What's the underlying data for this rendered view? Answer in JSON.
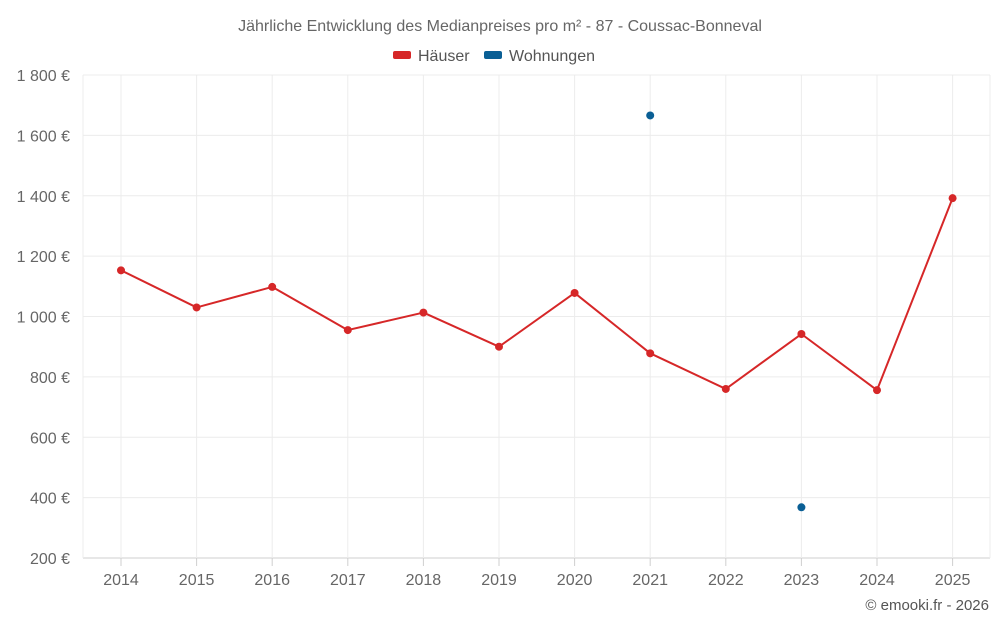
{
  "chart_data": {
    "type": "line",
    "title": "Jährliche Entwicklung des Medianpreises pro m² - 87 - Coussac-Bonneval",
    "categories": [
      "2014",
      "2015",
      "2016",
      "2017",
      "2018",
      "2019",
      "2020",
      "2021",
      "2022",
      "2023",
      "2024",
      "2025"
    ],
    "ylim": [
      200,
      1800
    ],
    "yticks": [
      200,
      400,
      600,
      800,
      1000,
      1200,
      1400,
      1600,
      1800
    ],
    "ytick_labels": [
      "200 €",
      "400 €",
      "600 €",
      "800 €",
      "1 000 €",
      "1 200 €",
      "1 400 €",
      "1 600 €",
      "1 800 €"
    ],
    "grid": true,
    "legend_position": "top-center",
    "series": [
      {
        "name": "Häuser",
        "color": "#d62728",
        "values": [
          1153,
          1030,
          1098,
          955,
          1013,
          900,
          1078,
          878,
          760,
          942,
          756,
          1392
        ]
      },
      {
        "name": "Wohnungen",
        "color": "#0a5f95",
        "values": [
          null,
          null,
          null,
          null,
          null,
          null,
          null,
          1666,
          null,
          368,
          null,
          null
        ]
      }
    ]
  },
  "credit": "© emooki.fr - 2026"
}
